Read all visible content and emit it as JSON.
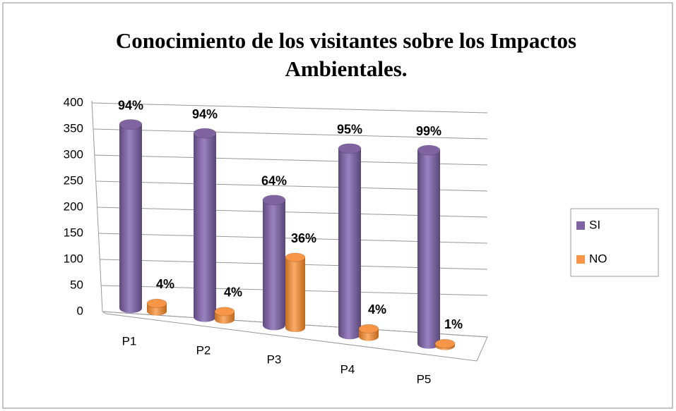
{
  "chart_data": {
    "type": "bar3d",
    "title": "Conocimiento de los visitantes sobre los Impactos Ambientales.",
    "categories": [
      "P1",
      "P2",
      "P3",
      "P4",
      "P5"
    ],
    "series": [
      {
        "name": "SI",
        "color": "#8064a2",
        "values": [
          352,
          352,
          240,
          356,
          371
        ],
        "value_labels": [
          "94%",
          "94%",
          "64%",
          "95%",
          "99%"
        ]
      },
      {
        "name": "NO",
        "color": "#f79646",
        "values": [
          15,
          15,
          135,
          15,
          4
        ],
        "value_labels": [
          "4%",
          "4%",
          "36%",
          "4%",
          "1%"
        ]
      }
    ],
    "ylim": [
      0,
      400
    ],
    "yticks": [
      0,
      50,
      100,
      150,
      200,
      250,
      300,
      350,
      400
    ],
    "grid": true,
    "legend": "right"
  }
}
